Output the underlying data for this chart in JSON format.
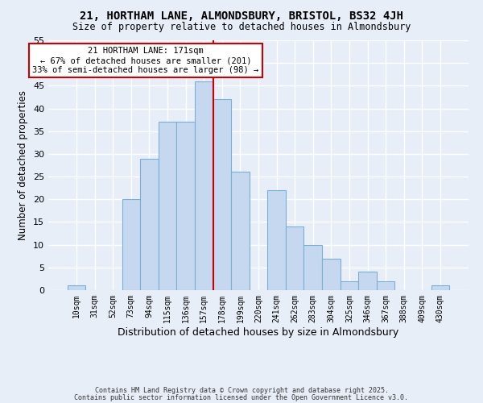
{
  "title": "21, HORTHAM LANE, ALMONDSBURY, BRISTOL, BS32 4JH",
  "subtitle": "Size of property relative to detached houses in Almondsbury",
  "xlabel": "Distribution of detached houses by size in Almondsbury",
  "ylabel": "Number of detached properties",
  "bar_labels": [
    "10sqm",
    "31sqm",
    "52sqm",
    "73sqm",
    "94sqm",
    "115sqm",
    "136sqm",
    "157sqm",
    "178sqm",
    "199sqm",
    "220sqm",
    "241sqm",
    "262sqm",
    "283sqm",
    "304sqm",
    "325sqm",
    "346sqm",
    "367sqm",
    "388sqm",
    "409sqm",
    "430sqm"
  ],
  "bar_values": [
    1,
    0,
    0,
    20,
    29,
    37,
    37,
    46,
    42,
    26,
    0,
    22,
    14,
    10,
    7,
    2,
    4,
    2,
    0,
    0,
    1
  ],
  "bar_color": "#c5d8f0",
  "bar_edge_color": "#7aafd4",
  "background_color": "#e8eef8",
  "grid_color": "#ffffff",
  "vline_x": 7.5,
  "vline_color": "#cc0000",
  "ylim": [
    0,
    55
  ],
  "yticks": [
    0,
    5,
    10,
    15,
    20,
    25,
    30,
    35,
    40,
    45,
    50,
    55
  ],
  "annotation_title": "21 HORTHAM LANE: 171sqm",
  "annotation_line1": "← 67% of detached houses are smaller (201)",
  "annotation_line2": "33% of semi-detached houses are larger (98) →",
  "footer1": "Contains HM Land Registry data © Crown copyright and database right 2025.",
  "footer2": "Contains public sector information licensed under the Open Government Licence v3.0."
}
